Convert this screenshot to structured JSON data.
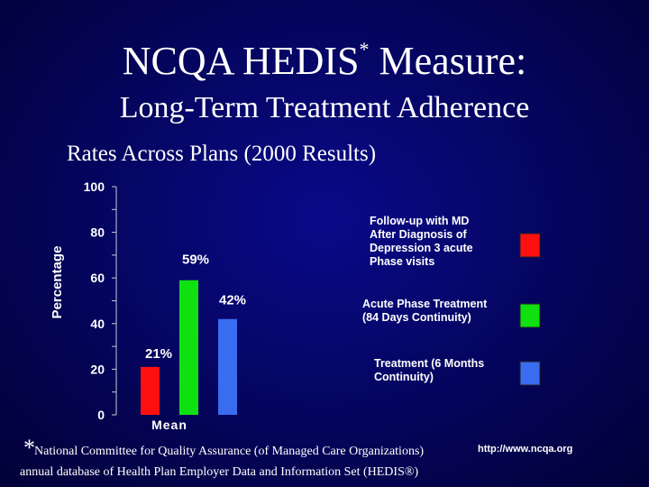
{
  "title": "NCQA HEDIS",
  "title_mark": "*",
  "title_suffix": "Measure:",
  "subtitle": "Long-Term Treatment Adherence",
  "caption": "Rates Across Plans (2000 Results)",
  "footnote_mark": "*",
  "footnote_line1": "National Committee for Quality Assurance (of Managed Care Organizations)",
  "footnote_line2": "annual database of Health Plan Employer Data and Information Set (HEDIS®)",
  "url": "http://www.ncqa.org",
  "colors": {
    "background": "#03034f",
    "red": "#ff1010",
    "green": "#10e010",
    "blue": "#3a6cf0"
  },
  "chart_data": {
    "type": "bar",
    "categories": [
      "Mean"
    ],
    "ylabel": "Percentage",
    "ylim": [
      0,
      100
    ],
    "yticks": [
      0,
      20,
      40,
      60,
      80,
      100
    ],
    "series": [
      {
        "name": "Follow-up with MD After Diagnosis of Depression 3 acute Phase visits",
        "values": [
          21
        ],
        "label": "21%",
        "color": "#ff1010"
      },
      {
        "name": "Acute Phase Treatment (84 Days Continuity)",
        "values": [
          59
        ],
        "label": "59%",
        "color": "#10e010"
      },
      {
        "name": "Treatment (6 Months Continuity)",
        "values": [
          42
        ],
        "label": "42%",
        "color": "#3a6cf0"
      }
    ],
    "legend_position": "right"
  }
}
